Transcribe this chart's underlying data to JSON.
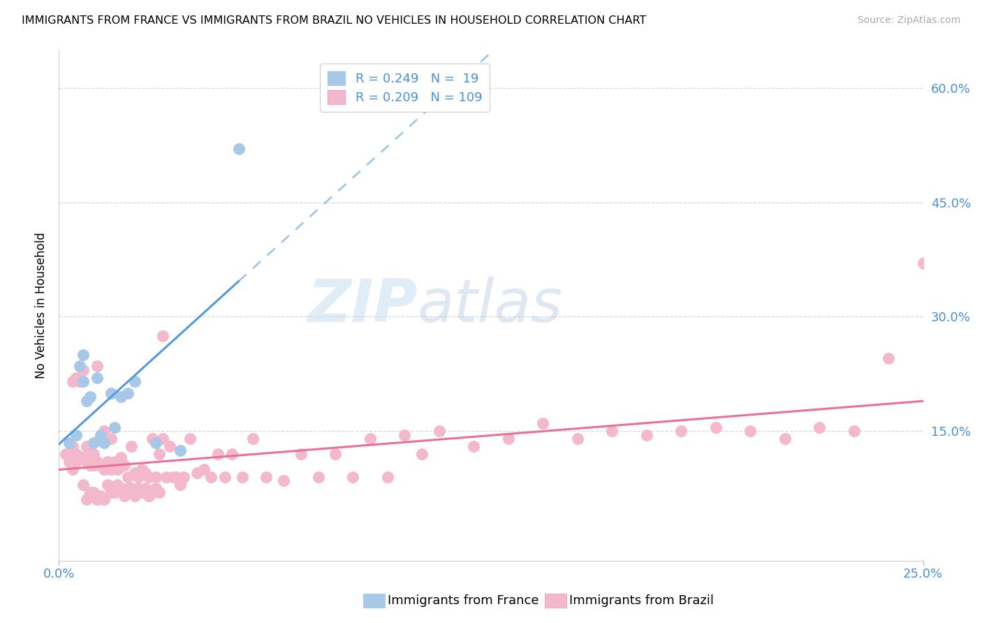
{
  "title": "IMMIGRANTS FROM FRANCE VS IMMIGRANTS FROM BRAZIL NO VEHICLES IN HOUSEHOLD CORRELATION CHART",
  "source": "Source: ZipAtlas.com",
  "ylabel": "No Vehicles in Household",
  "yticks_right": [
    "60.0%",
    "45.0%",
    "30.0%",
    "15.0%"
  ],
  "ytick_vals_right": [
    0.6,
    0.45,
    0.3,
    0.15
  ],
  "xlim": [
    0.0,
    0.25
  ],
  "ylim": [
    -0.02,
    0.65
  ],
  "france_color": "#a8c8e8",
  "brazil_color": "#f4b8cc",
  "france_line_color": "#5599dd",
  "brazil_line_color": "#e8709a",
  "france_line_dash_color": "#99bbdd",
  "watermark_zip": "ZIP",
  "watermark_atlas": "atlas",
  "france_scatter_x": [
    0.003,
    0.005,
    0.006,
    0.007,
    0.007,
    0.008,
    0.009,
    0.01,
    0.011,
    0.012,
    0.013,
    0.015,
    0.016,
    0.018,
    0.02,
    0.022,
    0.028,
    0.035,
    0.052
  ],
  "france_scatter_y": [
    0.135,
    0.145,
    0.235,
    0.25,
    0.215,
    0.19,
    0.195,
    0.135,
    0.22,
    0.145,
    0.135,
    0.2,
    0.155,
    0.195,
    0.2,
    0.215,
    0.135,
    0.125,
    0.52
  ],
  "brazil_scatter_x": [
    0.002,
    0.003,
    0.004,
    0.004,
    0.005,
    0.005,
    0.006,
    0.006,
    0.007,
    0.007,
    0.008,
    0.008,
    0.009,
    0.009,
    0.01,
    0.01,
    0.011,
    0.011,
    0.012,
    0.012,
    0.013,
    0.013,
    0.014,
    0.015,
    0.015,
    0.016,
    0.017,
    0.018,
    0.019,
    0.02,
    0.021,
    0.022,
    0.023,
    0.024,
    0.025,
    0.026,
    0.027,
    0.028,
    0.029,
    0.03,
    0.031,
    0.032,
    0.033,
    0.034,
    0.035,
    0.036,
    0.038,
    0.04,
    0.042,
    0.044,
    0.046,
    0.048,
    0.05,
    0.053,
    0.056,
    0.06,
    0.065,
    0.07,
    0.075,
    0.08,
    0.085,
    0.09,
    0.095,
    0.1,
    0.105,
    0.11,
    0.12,
    0.13,
    0.14,
    0.15,
    0.16,
    0.17,
    0.18,
    0.19,
    0.2,
    0.21,
    0.22,
    0.23,
    0.24,
    0.25,
    0.003,
    0.004,
    0.005,
    0.006,
    0.007,
    0.008,
    0.009,
    0.01,
    0.011,
    0.012,
    0.013,
    0.014,
    0.015,
    0.016,
    0.017,
    0.018,
    0.019,
    0.02,
    0.021,
    0.022,
    0.023,
    0.024,
    0.025,
    0.026,
    0.027,
    0.028,
    0.029,
    0.03
  ],
  "brazil_scatter_y": [
    0.12,
    0.11,
    0.13,
    0.215,
    0.12,
    0.22,
    0.115,
    0.215,
    0.115,
    0.23,
    0.11,
    0.13,
    0.105,
    0.12,
    0.105,
    0.12,
    0.11,
    0.235,
    0.105,
    0.14,
    0.1,
    0.15,
    0.11,
    0.1,
    0.14,
    0.11,
    0.1,
    0.115,
    0.105,
    0.09,
    0.13,
    0.095,
    0.09,
    0.1,
    0.095,
    0.09,
    0.14,
    0.09,
    0.12,
    0.14,
    0.09,
    0.13,
    0.09,
    0.09,
    0.08,
    0.09,
    0.14,
    0.095,
    0.1,
    0.09,
    0.12,
    0.09,
    0.12,
    0.09,
    0.14,
    0.09,
    0.085,
    0.12,
    0.09,
    0.12,
    0.09,
    0.14,
    0.09,
    0.145,
    0.12,
    0.15,
    0.13,
    0.14,
    0.16,
    0.14,
    0.15,
    0.145,
    0.15,
    0.155,
    0.15,
    0.14,
    0.155,
    0.15,
    0.245,
    0.37,
    0.12,
    0.1,
    0.11,
    0.115,
    0.08,
    0.06,
    0.07,
    0.07,
    0.06,
    0.065,
    0.06,
    0.08,
    0.07,
    0.07,
    0.08,
    0.075,
    0.065,
    0.075,
    0.075,
    0.065,
    0.075,
    0.07,
    0.075,
    0.065,
    0.07,
    0.075,
    0.07,
    0.275
  ]
}
